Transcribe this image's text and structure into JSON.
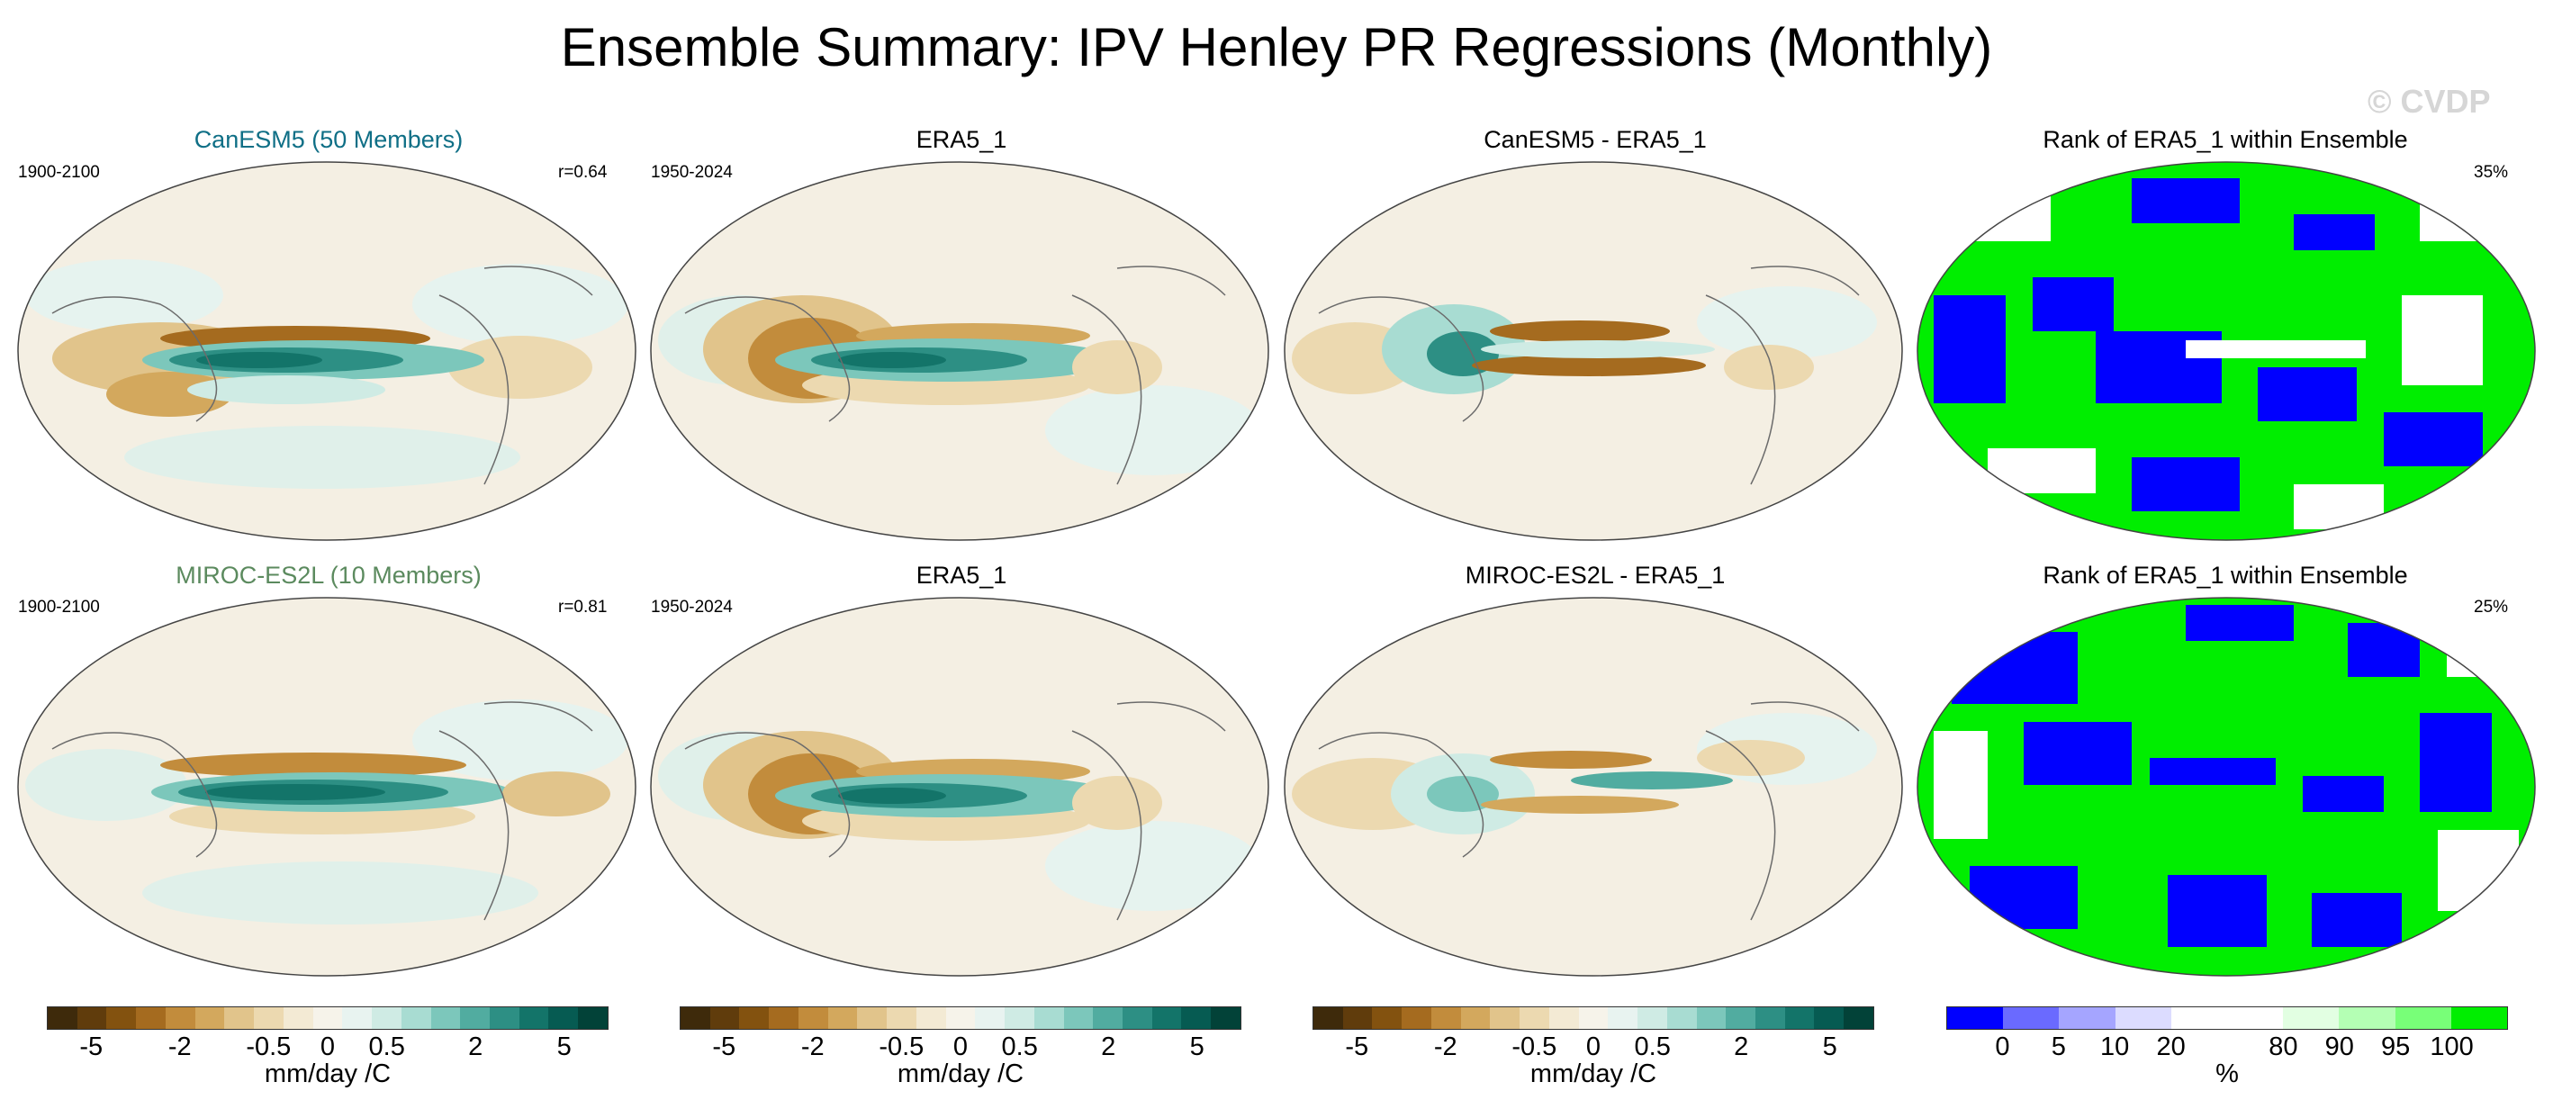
{
  "page_title": "Ensemble Summary: IPV Henley PR Regressions (Monthly)",
  "watermark": "© CVDP",
  "rows": [
    {
      "model_title": "CanESM5 (50 Members)",
      "model_title_color": "#0f6f86",
      "model_years": "1900-2100",
      "pattern_corr": "r=0.64",
      "obs_title": "ERA5_1",
      "obs_years": "1950-2024",
      "diff_title": "CanESM5 - ERA5_1",
      "rank_title": "Rank of ERA5_1 within Ensemble",
      "rank_percent": "35%"
    },
    {
      "model_title": "MIROC-ES2L (10 Members)",
      "model_title_color": "#5b8a5e",
      "model_years": "1900-2100",
      "pattern_corr": "r=0.81",
      "obs_title": "ERA5_1",
      "obs_years": "1950-2024",
      "diff_title": "MIROC-ES2L - ERA5_1",
      "rank_title": "Rank of ERA5_1 within Ensemble",
      "rank_percent": "25%"
    }
  ],
  "colorbar_brbg": {
    "colors": [
      "#3e2a0b",
      "#603c0c",
      "#83520f",
      "#a56b1f",
      "#c28c3c",
      "#d3a85d",
      "#e1c48b",
      "#ecd9b0",
      "#f3ead4",
      "#f6f3ea",
      "#e8f3f0",
      "#cfebe4",
      "#a8dcd2",
      "#7cc7bb",
      "#51aca0",
      "#2d8f84",
      "#137469",
      "#065b52",
      "#024238"
    ],
    "tick_labels": [
      "-5",
      "-2",
      "-0.5",
      "0",
      "0.5",
      "2",
      "5"
    ],
    "unit": "mm/day /C"
  },
  "colorbar_rank": {
    "colors": [
      "#0000ff",
      "#6a6aff",
      "#a5a5ff",
      "#dcdcff",
      "#ffffff",
      "#ffffff",
      "#e2ffe2",
      "#b4ffb4",
      "#78ff78",
      "#00ee00"
    ],
    "tick_labels": [
      "0",
      "5",
      "10",
      "20",
      "80",
      "90",
      "95",
      "100"
    ],
    "unit": "%"
  },
  "palette": {
    "brown_dark": "#a56b1f",
    "brown_mid": "#d3a85d",
    "brown_light": "#ecd9b0",
    "neutral": "#f4efe3",
    "teal_light": "#cfebe4",
    "teal_mid": "#51aca0",
    "teal_dark": "#137469",
    "rank_blue": "#0000ff",
    "rank_green": "#00ee00"
  }
}
